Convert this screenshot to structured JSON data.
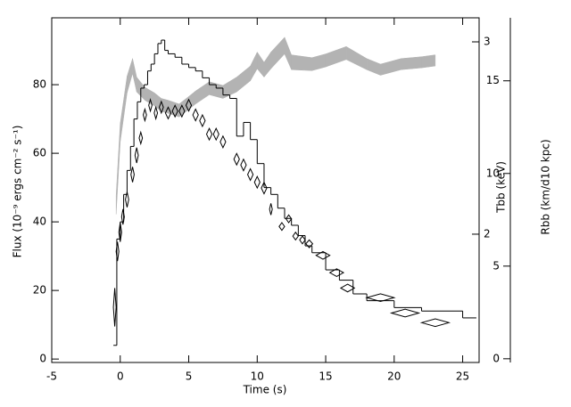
{
  "chart_data": {
    "type": "histogram",
    "x_label": "Time (s)",
    "y_label": "Flux (10⁻⁹ ergs cm⁻² s⁻¹)",
    "y2_label": "Tbb (keV)",
    "y3_label": "Rbb (km/d10 kpc)",
    "xlim": [
      -5,
      26.2
    ],
    "xticks": [
      -5,
      0,
      5,
      10,
      15,
      20,
      25
    ],
    "ylim": [
      -1,
      99.5
    ],
    "yticks": [
      0,
      20,
      40,
      60,
      80
    ],
    "y2lim": [
      1.333,
      3.125
    ],
    "y2ticks": [
      2,
      3
    ],
    "y3lim": [
      -0.2,
      18.4
    ],
    "y3ticks": [
      0,
      5,
      10,
      15
    ],
    "flux": {
      "color": "#000000",
      "bins": [
        -0.5,
        -0.25,
        0,
        0.25,
        0.5,
        0.75,
        1,
        1.25,
        1.5,
        1.75,
        2,
        2.25,
        2.5,
        2.75,
        3,
        3.25,
        3.5,
        4,
        4.5,
        5,
        5.5,
        6,
        6.5,
        7,
        7.5,
        8,
        8.5,
        9,
        9.5,
        10,
        10.5,
        11,
        11.5,
        12,
        12.5,
        13,
        13.5,
        14,
        15,
        16,
        17,
        18,
        20,
        22,
        25,
        26
      ],
      "values": [
        4,
        35,
        40,
        48,
        55,
        62,
        70,
        75,
        79,
        80,
        84,
        86,
        89,
        92,
        93,
        90,
        89,
        88,
        86,
        85,
        84,
        82,
        80,
        79,
        77,
        76,
        65,
        69,
        64,
        57,
        50,
        48,
        44,
        41,
        39,
        36,
        33,
        31,
        26,
        23,
        19,
        17,
        15,
        14,
        12
      ]
    },
    "temperature": {
      "axis": "y2",
      "color": "#000000",
      "x": [
        -0.4,
        -0.2,
        0,
        0.2,
        0.5,
        0.9,
        1.2,
        1.5,
        1.8,
        2.2,
        2.6,
        3.0,
        3.5,
        4.0,
        4.5,
        5.0,
        5.5,
        6.0,
        6.5,
        7.0,
        7.5,
        8.5,
        9.0,
        9.5,
        10.0,
        10.5,
        11.0,
        11.8,
        12.3,
        12.8,
        13.3,
        13.8,
        14.8,
        15.8,
        16.6,
        19.0,
        20.8,
        23.0
      ],
      "values": [
        1.62,
        1.91,
        2.01,
        2.09,
        2.18,
        2.31,
        2.41,
        2.5,
        2.62,
        2.67,
        2.63,
        2.66,
        2.63,
        2.64,
        2.64,
        2.67,
        2.62,
        2.59,
        2.52,
        2.52,
        2.48,
        2.39,
        2.36,
        2.31,
        2.27,
        2.24,
        2.13,
        2.04,
        2.08,
        1.99,
        1.97,
        1.95,
        1.89,
        1.8,
        1.72,
        1.67,
        1.59,
        1.54
      ],
      "errors": [
        0.1,
        0.05,
        0.05,
        0.04,
        0.04,
        0.04,
        0.04,
        0.03,
        0.03,
        0.03,
        0.03,
        0.03,
        0.03,
        0.03,
        0.03,
        0.03,
        0.03,
        0.03,
        0.03,
        0.03,
        0.03,
        0.03,
        0.03,
        0.03,
        0.03,
        0.03,
        0.03,
        0.02,
        0.02,
        0.02,
        0.02,
        0.02,
        0.02,
        0.02,
        0.02,
        0.02,
        0.02,
        0.02
      ],
      "xerr": [
        0.1,
        0.1,
        0.1,
        0.1,
        0.12,
        0.12,
        0.12,
        0.12,
        0.12,
        0.12,
        0.12,
        0.15,
        0.2,
        0.2,
        0.2,
        0.2,
        0.2,
        0.2,
        0.2,
        0.2,
        0.2,
        0.2,
        0.2,
        0.2,
        0.2,
        0.2,
        0.1,
        0.2,
        0.2,
        0.2,
        0.2,
        0.25,
        0.5,
        0.5,
        0.5,
        1.0,
        1.0,
        1.0
      ]
    },
    "radius": {
      "axis": "y3",
      "color": "#b3b3b3",
      "x": [
        -0.3,
        0,
        0.5,
        0.9,
        1.2,
        1.8,
        2.5,
        3.0,
        3.5,
        4.3,
        5,
        5.5,
        6.5,
        7.5,
        8.5,
        9.5,
        10,
        10.5,
        11,
        12,
        12.5,
        14,
        15,
        16.5,
        18,
        19,
        20.5,
        22,
        23
      ],
      "values": [
        8.3,
        12.2,
        14.8,
        15.8,
        14.8,
        14.3,
        14.0,
        13.7,
        13.6,
        13.4,
        13.8,
        14.1,
        14.6,
        14.4,
        14.8,
        15.4,
        16.1,
        15.6,
        16.1,
        16.9,
        16.0,
        15.9,
        16.1,
        16.5,
        15.9,
        15.6,
        15.9,
        16.0,
        16.1
      ],
      "errors": [
        0.5,
        0.5,
        0.45,
        0.4,
        0.4,
        0.35,
        0.35,
        0.35,
        0.35,
        0.35,
        0.35,
        0.35,
        0.35,
        0.35,
        0.4,
        0.4,
        0.45,
        0.4,
        0.45,
        0.45,
        0.4,
        0.35,
        0.35,
        0.35,
        0.3,
        0.3,
        0.3,
        0.3,
        0.3
      ]
    }
  }
}
